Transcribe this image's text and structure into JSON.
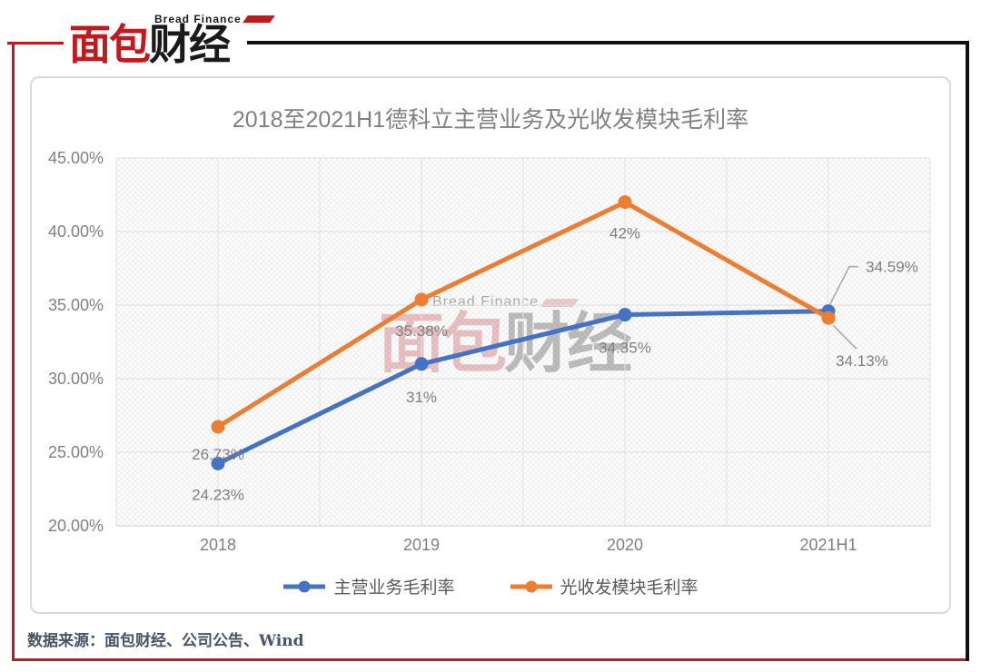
{
  "header": {
    "logo": {
      "en": "Bread Finance",
      "zh_red": "面包",
      "zh_black": "财经"
    }
  },
  "chart_data": {
    "type": "line",
    "title": "2018至2021H1德科立主营业务及光收发模块毛利率",
    "categories": [
      "2018",
      "2019",
      "2020",
      "2021H1"
    ],
    "y_axis": {
      "min": 20,
      "max": 45,
      "tick_step": 5,
      "tick_labels": [
        "45.00%",
        "40.00%",
        "35.00%",
        "30.00%",
        "25.00%",
        "20.00%"
      ]
    },
    "grid": true,
    "legend_position": "bottom",
    "series": [
      {
        "name": "主营业务毛利率",
        "color": "#4472C4",
        "values": [
          24.23,
          31,
          34.35,
          34.59
        ],
        "labels": [
          "24.23%",
          "31%",
          "34.35%",
          "34.59%"
        ]
      },
      {
        "name": "光收发模块毛利率",
        "color": "#ED7D31",
        "values": [
          26.73,
          35.38,
          42,
          34.13
        ],
        "labels": [
          "26.73%",
          "35.38%",
          "42%",
          "34.13%"
        ]
      }
    ]
  },
  "watermark": {
    "en": "Bread Finance",
    "zh_red": "面包",
    "zh_gray": "财经"
  },
  "footer": {
    "source_note": "数据来源：面包财经、公司公告、Wind"
  },
  "colors": {
    "brand_red": "#C2191E",
    "blue": "#4472C4",
    "orange": "#ED7D31",
    "gridline": "#DCDCDC",
    "axis_text": "#808080",
    "data_label": "#7F7F7F"
  }
}
